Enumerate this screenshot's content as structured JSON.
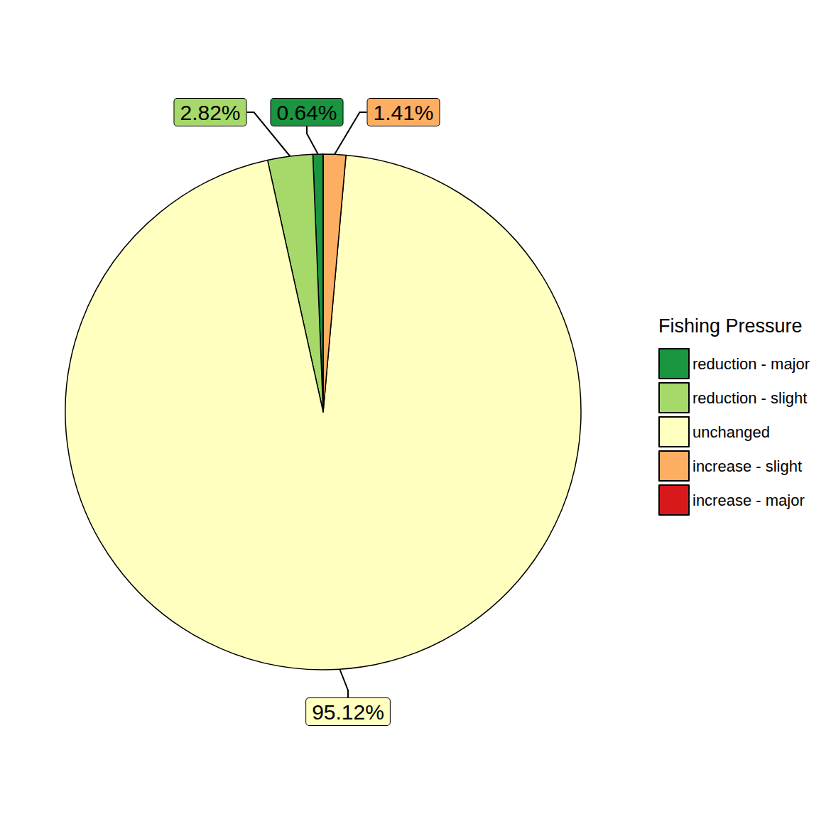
{
  "chart_data": {
    "type": "pie",
    "legend_title": "Fishing Pressure",
    "categories": [
      "reduction - major",
      "reduction - slight",
      "unchanged",
      "increase - slight",
      "increase - major"
    ],
    "values": [
      0.64,
      2.82,
      95.12,
      1.41,
      0
    ],
    "value_labels": [
      "0.64%",
      "2.82%",
      "95.12%",
      "1.41%",
      null
    ],
    "colors": [
      "#1a9641",
      "#a6d96a",
      "#ffffbf",
      "#fdae61",
      "#d7191c"
    ],
    "data_labels": true,
    "legend": "right"
  }
}
